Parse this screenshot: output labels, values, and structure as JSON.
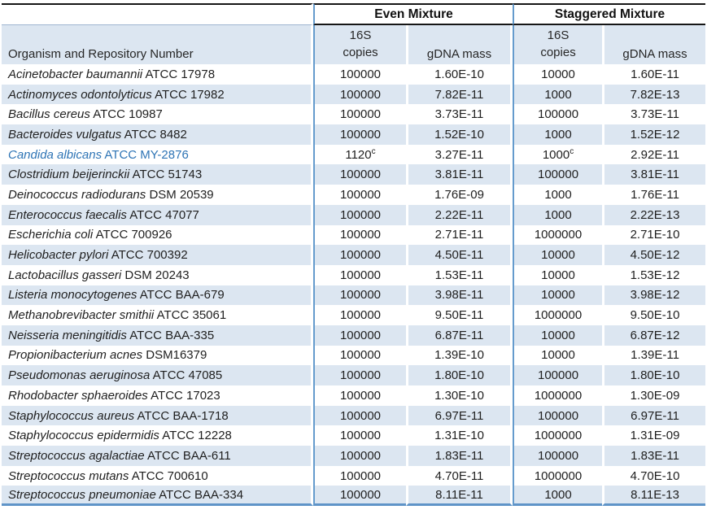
{
  "table": {
    "group_headers": {
      "even": "Even Mixture",
      "staggered": "Staggered Mixture"
    },
    "sub_headers": {
      "organism": "Organism and Repository Number",
      "copies_line1": "16S",
      "copies_line2": "copies",
      "gdna": "gDNA mass"
    },
    "rows": [
      {
        "name": "Acinetobacter baumannii",
        "repo": "ATCC 17978",
        "even_copies": "100000",
        "even_copies_sup": "",
        "even_gdna": "1.60E-10",
        "stag_copies": "10000",
        "stag_copies_sup": "",
        "stag_gdna": "1.60E-11",
        "highlight": false
      },
      {
        "name": "Actinomyces odontolyticus",
        "repo": "ATCC 17982",
        "even_copies": "100000",
        "even_copies_sup": "",
        "even_gdna": "7.82E-11",
        "stag_copies": "1000",
        "stag_copies_sup": "",
        "stag_gdna": "7.82E-13",
        "highlight": false
      },
      {
        "name": "Bacillus cereus",
        "repo": "ATCC 10987",
        "even_copies": "100000",
        "even_copies_sup": "",
        "even_gdna": "3.73E-11",
        "stag_copies": "100000",
        "stag_copies_sup": "",
        "stag_gdna": "3.73E-11",
        "highlight": false
      },
      {
        "name": "Bacteroides vulgatus",
        "repo": "ATCC 8482",
        "even_copies": "100000",
        "even_copies_sup": "",
        "even_gdna": "1.52E-10",
        "stag_copies": "1000",
        "stag_copies_sup": "",
        "stag_gdna": "1.52E-12",
        "highlight": false
      },
      {
        "name": "Candida albicans",
        "repo": "ATCC MY-2876",
        "even_copies": "1120",
        "even_copies_sup": "c",
        "even_gdna": "3.27E-11",
        "stag_copies": "1000",
        "stag_copies_sup": "c",
        "stag_gdna": "2.92E-11",
        "highlight": true
      },
      {
        "name": "Clostridium beijerinckii",
        "repo": "ATCC 51743",
        "even_copies": "100000",
        "even_copies_sup": "",
        "even_gdna": "3.81E-11",
        "stag_copies": "100000",
        "stag_copies_sup": "",
        "stag_gdna": "3.81E-11",
        "highlight": false
      },
      {
        "name": "Deinococcus radiodurans",
        "repo": "DSM 20539",
        "even_copies": "100000",
        "even_copies_sup": "",
        "even_gdna": "1.76E-09",
        "stag_copies": "1000",
        "stag_copies_sup": "",
        "stag_gdna": "1.76E-11",
        "highlight": false
      },
      {
        "name": "Enterococcus faecalis",
        "repo": "ATCC 47077",
        "even_copies": "100000",
        "even_copies_sup": "",
        "even_gdna": "2.22E-11",
        "stag_copies": "1000",
        "stag_copies_sup": "",
        "stag_gdna": "2.22E-13",
        "highlight": false
      },
      {
        "name": "Escherichia coli",
        "repo": "ATCC 700926",
        "even_copies": "100000",
        "even_copies_sup": "",
        "even_gdna": "2.71E-11",
        "stag_copies": "1000000",
        "stag_copies_sup": "",
        "stag_gdna": "2.71E-10",
        "highlight": false
      },
      {
        "name": "Helicobacter pylori",
        "repo": "ATCC 700392",
        "even_copies": "100000",
        "even_copies_sup": "",
        "even_gdna": "4.50E-11",
        "stag_copies": "10000",
        "stag_copies_sup": "",
        "stag_gdna": "4.50E-12",
        "highlight": false
      },
      {
        "name": "Lactobacillus gasseri",
        "repo": "DSM 20243",
        "even_copies": "100000",
        "even_copies_sup": "",
        "even_gdna": "1.53E-11",
        "stag_copies": "10000",
        "stag_copies_sup": "",
        "stag_gdna": "1.53E-12",
        "highlight": false
      },
      {
        "name": "Listeria monocytogenes",
        "repo": "ATCC BAA-679",
        "even_copies": "100000",
        "even_copies_sup": "",
        "even_gdna": "3.98E-11",
        "stag_copies": "10000",
        "stag_copies_sup": "",
        "stag_gdna": "3.98E-12",
        "highlight": false
      },
      {
        "name": "Methanobrevibacter smithii",
        "repo": "ATCC 35061",
        "even_copies": "100000",
        "even_copies_sup": "",
        "even_gdna": "9.50E-11",
        "stag_copies": "1000000",
        "stag_copies_sup": "",
        "stag_gdna": "9.50E-10",
        "highlight": false
      },
      {
        "name": "Neisseria meningitidis",
        "repo": "ATCC BAA-335",
        "even_copies": "100000",
        "even_copies_sup": "",
        "even_gdna": "6.87E-11",
        "stag_copies": "10000",
        "stag_copies_sup": "",
        "stag_gdna": "6.87E-12",
        "highlight": false
      },
      {
        "name": "Propionibacterium acnes",
        "repo": "DSM16379",
        "even_copies": "100000",
        "even_copies_sup": "",
        "even_gdna": "1.39E-10",
        "stag_copies": "10000",
        "stag_copies_sup": "",
        "stag_gdna": "1.39E-11",
        "highlight": false
      },
      {
        "name": "Pseudomonas aeruginosa",
        "repo": "ATCC 47085",
        "even_copies": "100000",
        "even_copies_sup": "",
        "even_gdna": "1.80E-10",
        "stag_copies": "100000",
        "stag_copies_sup": "",
        "stag_gdna": "1.80E-10",
        "highlight": false
      },
      {
        "name": "Rhodobacter sphaeroides",
        "repo": "ATCC 17023",
        "even_copies": "100000",
        "even_copies_sup": "",
        "even_gdna": "1.30E-10",
        "stag_copies": "1000000",
        "stag_copies_sup": "",
        "stag_gdna": "1.30E-09",
        "highlight": false
      },
      {
        "name": "Staphylococcus aureus",
        "repo": "ATCC BAA-1718",
        "even_copies": "100000",
        "even_copies_sup": "",
        "even_gdna": "6.97E-11",
        "stag_copies": "100000",
        "stag_copies_sup": "",
        "stag_gdna": "6.97E-11",
        "highlight": false
      },
      {
        "name": "Staphylococcus epidermidis",
        "repo": "ATCC 12228",
        "even_copies": "100000",
        "even_copies_sup": "",
        "even_gdna": "1.31E-10",
        "stag_copies": "1000000",
        "stag_copies_sup": "",
        "stag_gdna": "1.31E-09",
        "highlight": false
      },
      {
        "name": "Streptococcus agalactiae",
        "repo": "ATCC BAA-611",
        "even_copies": "100000",
        "even_copies_sup": "",
        "even_gdna": "1.83E-11",
        "stag_copies": "100000",
        "stag_copies_sup": "",
        "stag_gdna": "1.83E-11",
        "highlight": false
      },
      {
        "name": "Streptococcus mutans",
        "repo": "ATCC 700610",
        "even_copies": "100000",
        "even_copies_sup": "",
        "even_gdna": "4.70E-11",
        "stag_copies": "1000000",
        "stag_copies_sup": "",
        "stag_gdna": "4.70E-10",
        "highlight": false
      },
      {
        "name": "Streptococcus pneumoniae",
        "repo": "ATCC BAA-334",
        "even_copies": "100000",
        "even_copies_sup": "",
        "even_gdna": "8.11E-11",
        "stag_copies": "1000",
        "stag_copies_sup": "",
        "stag_gdna": "8.11E-13",
        "highlight": false
      }
    ]
  },
  "colors": {
    "stripe_fill": "#dce6f1",
    "accent_border_blue": "#659bcd",
    "header_border_black": "#161616",
    "highlight_text_blue": "#2e74b5"
  }
}
